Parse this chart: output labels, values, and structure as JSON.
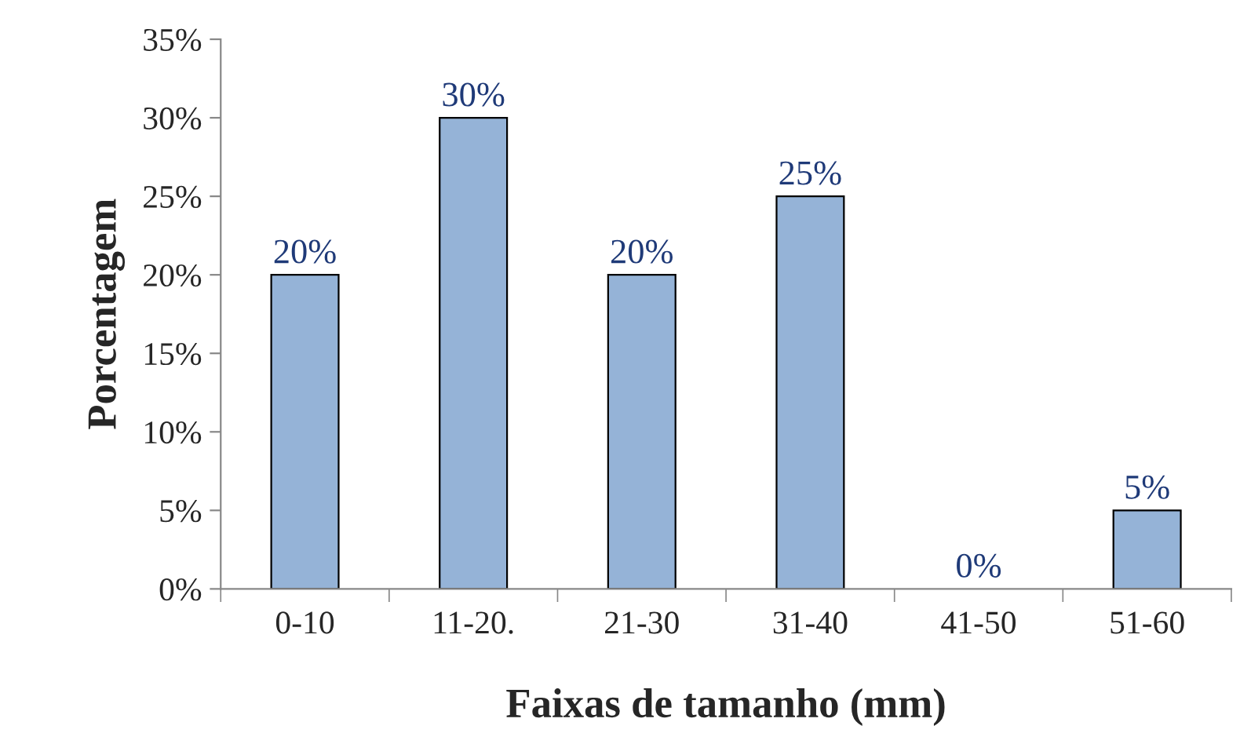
{
  "chart_data": {
    "type": "bar",
    "xlabel": "Faixas de tamanho (mm)",
    "ylabel": "Porcentagem",
    "categories": [
      "0-10",
      "11-20.",
      "21-30",
      "31-40",
      "41-50",
      "51-60"
    ],
    "values": [
      20,
      30,
      20,
      25,
      0,
      5
    ],
    "value_labels": [
      "20%",
      "30%",
      "20%",
      "25%",
      "0%",
      "5%"
    ],
    "color": "#95b3d7",
    "ylim": [
      0,
      35
    ],
    "yticks": [
      {
        "value": 0,
        "label": "0%"
      },
      {
        "value": 5,
        "label": "5%"
      },
      {
        "value": 10,
        "label": "10%"
      },
      {
        "value": 15,
        "label": "15%"
      },
      {
        "value": 20,
        "label": "20%"
      },
      {
        "value": 25,
        "label": "25%"
      },
      {
        "value": 30,
        "label": "30%"
      },
      {
        "value": 35,
        "label": "35%"
      }
    ],
    "grid": false,
    "legend": false
  }
}
